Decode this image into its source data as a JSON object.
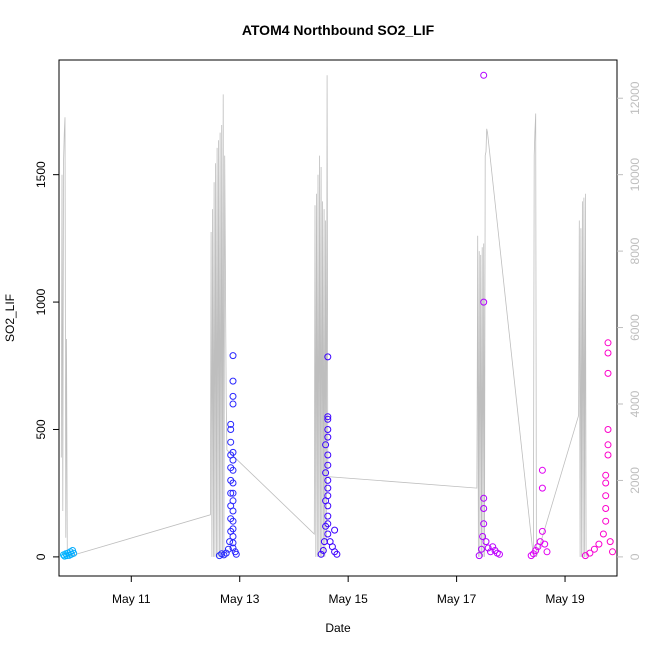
{
  "chart_data": {
    "type": "scatter",
    "title": "ATOM4 Northbound SO2_LIF",
    "xlabel": "Date",
    "ylabel": "SO2_LIF",
    "x_ticks": [
      "May 11",
      "May 13",
      "May 15",
      "May 17",
      "May 19"
    ],
    "y_ticks": [
      "0",
      "500",
      "1000",
      "1500"
    ],
    "y2_ticks": [
      "0",
      "2000",
      "4000",
      "6000",
      "8000",
      "10000",
      "12000"
    ],
    "xlim": [
      "2016-05-09 16:00",
      "2016-05-19 23:00"
    ],
    "ylim": [
      -75,
      1950
    ],
    "y2lim": [
      -500,
      13000
    ],
    "grid": false,
    "colors": {
      "axis": "#000000",
      "secondary_axis": "#bebebe",
      "trace_line": "#bebebe",
      "points_gradient": [
        "#00b5ff",
        "#1f5cff",
        "#2a1cff",
        "#3e00ff",
        "#7a00ff",
        "#d700ff",
        "#ff00c8"
      ]
    },
    "series": [
      {
        "type": "scatter",
        "values": [
          [
            "2016-05-09 18:00",
            8
          ],
          [
            "2016-05-09 18:30",
            3
          ],
          [
            "2016-05-09 19:00",
            12
          ],
          [
            "2016-05-09 19:30",
            5
          ],
          [
            "2016-05-09 20:00",
            15
          ],
          [
            "2016-05-09 20:30",
            6
          ],
          [
            "2016-05-09 21:00",
            20
          ],
          [
            "2016-05-09 21:30",
            10
          ],
          [
            "2016-05-09 22:00",
            25
          ],
          [
            "2016-05-09 22:30",
            14
          ],
          [
            "2016-05-12 15:00",
            5
          ],
          [
            "2016-05-12 16:00",
            12
          ],
          [
            "2016-05-12 17:00",
            8
          ],
          [
            "2016-05-12 18:00",
            15
          ],
          [
            "2016-05-12 19:00",
            30
          ],
          [
            "2016-05-12 19:30",
            60
          ],
          [
            "2016-05-12 20:00",
            100
          ],
          [
            "2016-05-12 20:00",
            150
          ],
          [
            "2016-05-12 20:00",
            200
          ],
          [
            "2016-05-12 20:00",
            250
          ],
          [
            "2016-05-12 20:00",
            300
          ],
          [
            "2016-05-12 20:00",
            350
          ],
          [
            "2016-05-12 20:00",
            400
          ],
          [
            "2016-05-12 20:00",
            450
          ],
          [
            "2016-05-12 20:00",
            500
          ],
          [
            "2016-05-12 20:00",
            520
          ],
          [
            "2016-05-12 21:00",
            600
          ],
          [
            "2016-05-12 21:00",
            630
          ],
          [
            "2016-05-12 21:00",
            690
          ],
          [
            "2016-05-12 21:00",
            790
          ],
          [
            "2016-05-12 21:00",
            410
          ],
          [
            "2016-05-12 21:00",
            380
          ],
          [
            "2016-05-12 21:00",
            340
          ],
          [
            "2016-05-12 21:00",
            290
          ],
          [
            "2016-05-12 21:00",
            250
          ],
          [
            "2016-05-12 21:00",
            220
          ],
          [
            "2016-05-12 21:00",
            180
          ],
          [
            "2016-05-12 21:00",
            140
          ],
          [
            "2016-05-12 21:00",
            110
          ],
          [
            "2016-05-12 21:00",
            80
          ],
          [
            "2016-05-12 21:00",
            55
          ],
          [
            "2016-05-12 21:00",
            35
          ],
          [
            "2016-05-12 22:00",
            20
          ],
          [
            "2016-05-12 22:30",
            10
          ],
          [
            "2016-05-14 12:00",
            10
          ],
          [
            "2016-05-14 13:00",
            25
          ],
          [
            "2016-05-14 13:30",
            60
          ],
          [
            "2016-05-14 14:00",
            120
          ],
          [
            "2016-05-14 14:00",
            220
          ],
          [
            "2016-05-14 14:00",
            440
          ],
          [
            "2016-05-14 14:00",
            330
          ],
          [
            "2016-05-14 15:00",
            360
          ],
          [
            "2016-05-14 15:00",
            400
          ],
          [
            "2016-05-14 15:00",
            470
          ],
          [
            "2016-05-14 15:00",
            500
          ],
          [
            "2016-05-14 15:00",
            540
          ],
          [
            "2016-05-14 15:00",
            550
          ],
          [
            "2016-05-14 15:00",
            785
          ],
          [
            "2016-05-14 15:00",
            300
          ],
          [
            "2016-05-14 15:00",
            270
          ],
          [
            "2016-05-14 15:00",
            240
          ],
          [
            "2016-05-14 15:00",
            200
          ],
          [
            "2016-05-14 15:00",
            160
          ],
          [
            "2016-05-14 15:00",
            130
          ],
          [
            "2016-05-14 15:00",
            90
          ],
          [
            "2016-05-14 16:00",
            60
          ],
          [
            "2016-05-14 17:00",
            40
          ],
          [
            "2016-05-14 18:00",
            105
          ],
          [
            "2016-05-14 18:00",
            20
          ],
          [
            "2016-05-14 19:00",
            10
          ],
          [
            "2016-05-17 10:00",
            5
          ],
          [
            "2016-05-17 11:00",
            30
          ],
          [
            "2016-05-17 11:30",
            80
          ],
          [
            "2016-05-17 12:00",
            130
          ],
          [
            "2016-05-17 12:00",
            190
          ],
          [
            "2016-05-17 12:00",
            230
          ],
          [
            "2016-05-17 12:00",
            1000
          ],
          [
            "2016-05-17 12:00",
            1890
          ],
          [
            "2016-05-17 13:00",
            60
          ],
          [
            "2016-05-17 14:00",
            35
          ],
          [
            "2016-05-17 15:00",
            20
          ],
          [
            "2016-05-17 16:00",
            40
          ],
          [
            "2016-05-17 17:00",
            25
          ],
          [
            "2016-05-17 18:00",
            15
          ],
          [
            "2016-05-17 19:00",
            10
          ],
          [
            "2016-05-18 09:00",
            5
          ],
          [
            "2016-05-18 10:00",
            12
          ],
          [
            "2016-05-18 11:00",
            25
          ],
          [
            "2016-05-18 12:00",
            40
          ],
          [
            "2016-05-18 13:00",
            60
          ],
          [
            "2016-05-18 14:00",
            100
          ],
          [
            "2016-05-18 14:00",
            270
          ],
          [
            "2016-05-18 14:00",
            340
          ],
          [
            "2016-05-18 15:00",
            50
          ],
          [
            "2016-05-18 16:00",
            20
          ],
          [
            "2016-05-19 09:00",
            5
          ],
          [
            "2016-05-19 11:00",
            15
          ],
          [
            "2016-05-19 13:00",
            30
          ],
          [
            "2016-05-19 15:00",
            50
          ],
          [
            "2016-05-19 17:00",
            90
          ],
          [
            "2016-05-19 18:00",
            140
          ],
          [
            "2016-05-19 18:00",
            190
          ],
          [
            "2016-05-19 18:00",
            240
          ],
          [
            "2016-05-19 18:00",
            290
          ],
          [
            "2016-05-19 18:00",
            320
          ],
          [
            "2016-05-19 19:00",
            400
          ],
          [
            "2016-05-19 19:00",
            440
          ],
          [
            "2016-05-19 19:00",
            500
          ],
          [
            "2016-05-19 19:00",
            720
          ],
          [
            "2016-05-19 19:00",
            800
          ],
          [
            "2016-05-19 19:00",
            840
          ],
          [
            "2016-05-19 20:00",
            60
          ],
          [
            "2016-05-19 21:00",
            20
          ]
        ]
      },
      {
        "type": "line",
        "axis": "right",
        "values": [
          [
            "2016-05-09 17:00",
            2600
          ],
          [
            "2016-05-09 17:20",
            10000
          ],
          [
            "2016-05-09 17:40",
            1200
          ],
          [
            "2016-05-09 18:00",
            10300
          ],
          [
            "2016-05-09 18:20",
            11100
          ],
          [
            "2016-05-09 18:40",
            11500
          ],
          [
            "2016-05-09 19:00",
            500
          ],
          [
            "2016-05-09 19:20",
            5700
          ],
          [
            "2016-05-09 19:40",
            0
          ],
          [
            "2016-05-12 11:00",
            1100
          ],
          [
            "2016-05-12 11:20",
            8500
          ],
          [
            "2016-05-12 11:40",
            0
          ],
          [
            "2016-05-12 12:00",
            9100
          ],
          [
            "2016-05-12 12:20",
            0
          ],
          [
            "2016-05-12 12:40",
            9800
          ],
          [
            "2016-05-12 13:00",
            0
          ],
          [
            "2016-05-12 13:20",
            10300
          ],
          [
            "2016-05-12 13:40",
            0
          ],
          [
            "2016-05-12 14:00",
            10700
          ],
          [
            "2016-05-12 14:20",
            0
          ],
          [
            "2016-05-12 14:40",
            10900
          ],
          [
            "2016-05-12 15:00",
            0
          ],
          [
            "2016-05-12 15:20",
            11100
          ],
          [
            "2016-05-12 15:40",
            0
          ],
          [
            "2016-05-12 16:00",
            11300
          ],
          [
            "2016-05-12 16:20",
            0
          ],
          [
            "2016-05-12 16:40",
            12100
          ],
          [
            "2016-05-12 17:00",
            0
          ],
          [
            "2016-05-12 17:20",
            10500
          ],
          [
            "2016-05-12 18:00",
            4100
          ],
          [
            "2016-05-12 18:20",
            2800
          ],
          [
            "2016-05-14 09:00",
            600
          ],
          [
            "2016-05-14 09:20",
            9200
          ],
          [
            "2016-05-14 09:40",
            0
          ],
          [
            "2016-05-14 10:00",
            9500
          ],
          [
            "2016-05-14 10:20",
            0
          ],
          [
            "2016-05-14 10:40",
            10000
          ],
          [
            "2016-05-14 11:00",
            0
          ],
          [
            "2016-05-14 11:20",
            10500
          ],
          [
            "2016-05-14 11:40",
            0
          ],
          [
            "2016-05-14 12:00",
            10200
          ],
          [
            "2016-05-14 12:20",
            0
          ],
          [
            "2016-05-14 12:40",
            9300
          ],
          [
            "2016-05-14 13:00",
            0
          ],
          [
            "2016-05-14 13:20",
            9100
          ],
          [
            "2016-05-14 13:40",
            0
          ],
          [
            "2016-05-14 14:00",
            8800
          ],
          [
            "2016-05-14 14:20",
            400
          ],
          [
            "2016-05-14 14:40",
            12600
          ],
          [
            "2016-05-14 15:00",
            2100
          ],
          [
            "2016-05-17 09:00",
            1800
          ],
          [
            "2016-05-17 09:20",
            8400
          ],
          [
            "2016-05-17 09:40",
            0
          ],
          [
            "2016-05-17 10:00",
            8000
          ],
          [
            "2016-05-17 10:20",
            0
          ],
          [
            "2016-05-17 10:40",
            7900
          ],
          [
            "2016-05-17 11:00",
            0
          ],
          [
            "2016-05-17 11:20",
            8100
          ],
          [
            "2016-05-17 11:40",
            0
          ],
          [
            "2016-05-17 12:00",
            8200
          ],
          [
            "2016-05-17 12:20",
            0
          ],
          [
            "2016-05-17 12:40",
            10500
          ],
          [
            "2016-05-17 13:00",
            10600
          ],
          [
            "2016-05-17 13:20",
            11200
          ],
          [
            "2016-05-17 13:40",
            11100
          ],
          [
            "2016-05-18 10:00",
            0
          ],
          [
            "2016-05-18 10:20",
            10500
          ],
          [
            "2016-05-18 10:40",
            11100
          ],
          [
            "2016-05-18 11:00",
            11600
          ],
          [
            "2016-05-18 11:20",
            0
          ],
          [
            "2016-05-19 06:00",
            3700
          ],
          [
            "2016-05-19 06:20",
            8800
          ],
          [
            "2016-05-19 06:40",
            0
          ],
          [
            "2016-05-19 07:00",
            8600
          ],
          [
            "2016-05-19 07:20",
            0
          ],
          [
            "2016-05-19 07:40",
            9300
          ],
          [
            "2016-05-19 08:00",
            0
          ],
          [
            "2016-05-19 08:20",
            9400
          ],
          [
            "2016-05-19 08:40",
            0
          ],
          [
            "2016-05-19 09:00",
            9500
          ],
          [
            "2016-05-19 09:20",
            0
          ]
        ]
      }
    ]
  }
}
